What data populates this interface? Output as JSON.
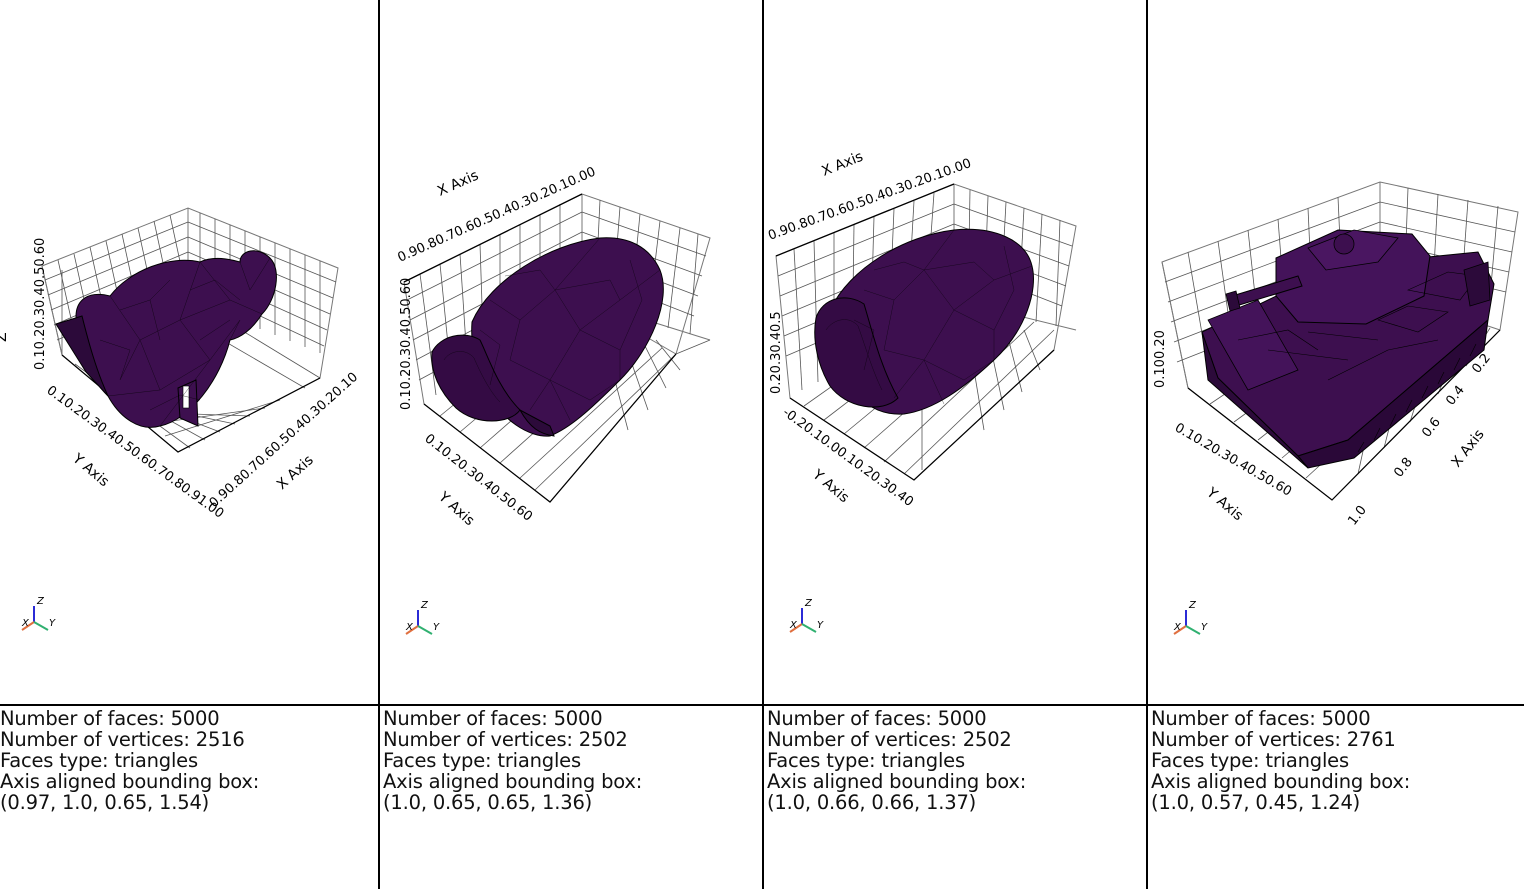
{
  "panels": [
    {
      "faces_label": "Number of faces: 5000",
      "vertices_label": "Number of vertices: 2516",
      "faces_type_label": "Faces type: triangles",
      "bbox_label": "Axis aligned bounding box:",
      "bbox_value": "(0.97, 1.0, 0.65, 1.54)",
      "axis_labels": {
        "x": "X Axis",
        "y": "Y Axis",
        "z": "Z"
      },
      "x_ticks": "0.90.80.70.60.50.40.30.20.10",
      "y_ticks": "0.10.20.30.40.50.60.70.80.91.00",
      "z_ticks": "0.10.20.30.40.50.60"
    },
    {
      "faces_label": "Number of faces: 5000",
      "vertices_label": "Number of vertices: 2502",
      "faces_type_label": "Faces type: triangles",
      "bbox_label": "Axis aligned bounding box:",
      "bbox_value": "(1.0, 0.65, 0.65, 1.36)",
      "axis_labels": {
        "x": "X Axis",
        "y": "Y Axis"
      },
      "x_ticks": "0.90.80.70.60.50.40.30.20.10.00",
      "y_ticks": "0.10.20.30.40.50.60",
      "z_ticks": "0.10.20.30.40.50.60"
    },
    {
      "faces_label": "Number of faces: 5000",
      "vertices_label": "Number of vertices: 2502",
      "faces_type_label": "Faces type: triangles",
      "bbox_label": "Axis aligned bounding box:",
      "bbox_value": "(1.0, 0.66, 0.66, 1.37)",
      "axis_labels": {
        "x": "X Axis",
        "y": "Y Axis"
      },
      "x_ticks": "0.90.80.70.60.50.40.30.20.10.00",
      "y_ticks": "-0.20.10.00.10.20.30.40",
      "z_ticks": "0.20.30.40.5"
    },
    {
      "faces_label": "Number of faces: 5000",
      "vertices_label": "Number of vertices: 2761",
      "faces_type_label": "Faces type: triangles",
      "bbox_label": "Axis aligned bounding box:",
      "bbox_value": "(1.0, 0.57, 0.45, 1.24)",
      "axis_labels": {
        "x": "X Axis",
        "y": "Y Axis"
      },
      "x_ticks": [
        "0.2",
        "0.4",
        "0.6",
        "0.8",
        "1.0"
      ],
      "y_ticks": "0.10.20.30.40.50.60",
      "z_ticks": "0.100.20"
    }
  ],
  "orientation_widget": {
    "x": "X",
    "y": "Y",
    "z": "Z"
  },
  "colors": {
    "mesh_fill": "#3d0f4f",
    "edge": "#000000",
    "grid": "#888888",
    "divider": "#000000"
  }
}
